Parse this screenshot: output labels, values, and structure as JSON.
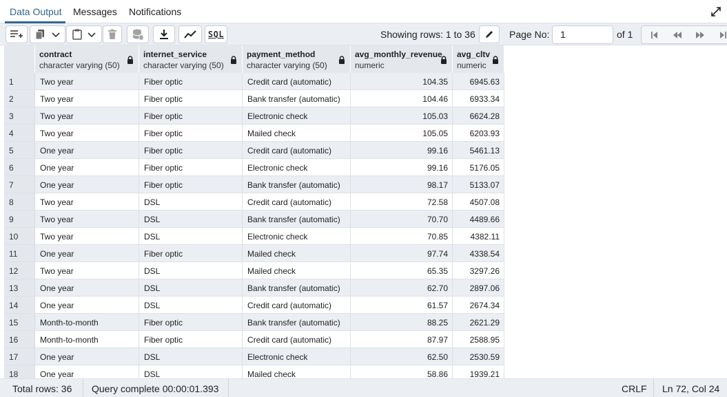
{
  "tabs": [
    {
      "label": "Data Output",
      "active": true
    },
    {
      "label": "Messages",
      "active": false
    },
    {
      "label": "Notifications",
      "active": false
    }
  ],
  "toolbar": {
    "sql_label": "SQL",
    "showing_rows": "Showing rows: 1 to 36",
    "page_no_label": "Page No:",
    "page_no_value": "1",
    "of_pages": "of 1"
  },
  "icons": {
    "add_row": "add-row-icon",
    "copy": "copy-icon",
    "paste": "paste-icon",
    "delete": "trash-icon",
    "save_data": "database-save-icon",
    "download": "download-icon",
    "graph": "line-chart-icon",
    "edit": "pencil-icon",
    "first": "first-page-icon",
    "prev": "previous-page-icon",
    "next": "next-page-icon",
    "last": "last-page-icon",
    "expand": "expand-icon",
    "lock": "lock-icon"
  },
  "columns": [
    {
      "name": "contract",
      "type": "character varying (50)"
    },
    {
      "name": "internet_service",
      "type": "character varying (50)"
    },
    {
      "name": "payment_method",
      "type": "character varying (50)"
    },
    {
      "name": "avg_monthly_revenue",
      "type": "numeric"
    },
    {
      "name": "avg_cltv",
      "type": "numeric"
    }
  ],
  "rows": [
    {
      "n": "1",
      "contract": "Two year",
      "internet_service": "Fiber optic",
      "payment_method": "Credit card (automatic)",
      "avg_monthly_revenue": "104.35",
      "avg_cltv": "6945.63"
    },
    {
      "n": "2",
      "contract": "Two year",
      "internet_service": "Fiber optic",
      "payment_method": "Bank transfer (automatic)",
      "avg_monthly_revenue": "104.46",
      "avg_cltv": "6933.34"
    },
    {
      "n": "3",
      "contract": "Two year",
      "internet_service": "Fiber optic",
      "payment_method": "Electronic check",
      "avg_monthly_revenue": "105.03",
      "avg_cltv": "6624.28"
    },
    {
      "n": "4",
      "contract": "Two year",
      "internet_service": "Fiber optic",
      "payment_method": "Mailed check",
      "avg_monthly_revenue": "105.05",
      "avg_cltv": "6203.93"
    },
    {
      "n": "5",
      "contract": "One year",
      "internet_service": "Fiber optic",
      "payment_method": "Credit card (automatic)",
      "avg_monthly_revenue": "99.16",
      "avg_cltv": "5461.13"
    },
    {
      "n": "6",
      "contract": "One year",
      "internet_service": "Fiber optic",
      "payment_method": "Electronic check",
      "avg_monthly_revenue": "99.16",
      "avg_cltv": "5176.05"
    },
    {
      "n": "7",
      "contract": "One year",
      "internet_service": "Fiber optic",
      "payment_method": "Bank transfer (automatic)",
      "avg_monthly_revenue": "98.17",
      "avg_cltv": "5133.07"
    },
    {
      "n": "8",
      "contract": "Two year",
      "internet_service": "DSL",
      "payment_method": "Credit card (automatic)",
      "avg_monthly_revenue": "72.58",
      "avg_cltv": "4507.08"
    },
    {
      "n": "9",
      "contract": "Two year",
      "internet_service": "DSL",
      "payment_method": "Bank transfer (automatic)",
      "avg_monthly_revenue": "70.70",
      "avg_cltv": "4489.66"
    },
    {
      "n": "10",
      "contract": "Two year",
      "internet_service": "DSL",
      "payment_method": "Electronic check",
      "avg_monthly_revenue": "70.85",
      "avg_cltv": "4382.11"
    },
    {
      "n": "11",
      "contract": "One year",
      "internet_service": "Fiber optic",
      "payment_method": "Mailed check",
      "avg_monthly_revenue": "97.74",
      "avg_cltv": "4338.54"
    },
    {
      "n": "12",
      "contract": "Two year",
      "internet_service": "DSL",
      "payment_method": "Mailed check",
      "avg_monthly_revenue": "65.35",
      "avg_cltv": "3297.26"
    },
    {
      "n": "13",
      "contract": "One year",
      "internet_service": "DSL",
      "payment_method": "Bank transfer (automatic)",
      "avg_monthly_revenue": "62.70",
      "avg_cltv": "2897.06"
    },
    {
      "n": "14",
      "contract": "One year",
      "internet_service": "DSL",
      "payment_method": "Credit card (automatic)",
      "avg_monthly_revenue": "61.57",
      "avg_cltv": "2674.34"
    },
    {
      "n": "15",
      "contract": "Month-to-month",
      "internet_service": "Fiber optic",
      "payment_method": "Bank transfer (automatic)",
      "avg_monthly_revenue": "88.25",
      "avg_cltv": "2621.29"
    },
    {
      "n": "16",
      "contract": "Month-to-month",
      "internet_service": "Fiber optic",
      "payment_method": "Credit card (automatic)",
      "avg_monthly_revenue": "87.97",
      "avg_cltv": "2588.95"
    },
    {
      "n": "17",
      "contract": "One year",
      "internet_service": "DSL",
      "payment_method": "Electronic check",
      "avg_monthly_revenue": "62.50",
      "avg_cltv": "2530.59"
    },
    {
      "n": "18",
      "contract": "One year",
      "internet_service": "DSL",
      "payment_method": "Mailed check",
      "avg_monthly_revenue": "58.86",
      "avg_cltv": "1939.21"
    }
  ],
  "status": {
    "total_rows": "Total rows: 36",
    "query_complete": "Query complete 00:00:01.393",
    "line_ending": "CRLF",
    "cursor": "Ln 72, Col 24"
  },
  "colors": {
    "accent": "#326690",
    "header_bg": "#e4e7ec",
    "alt_row_bg": "#ebeef3"
  }
}
